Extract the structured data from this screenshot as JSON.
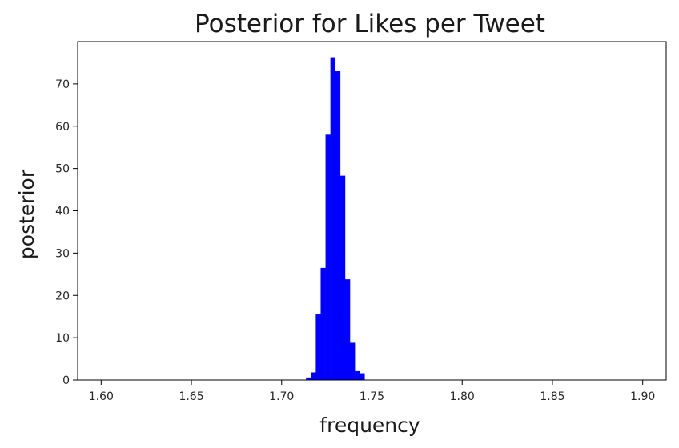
{
  "chart_data": {
    "type": "bar",
    "title": "Posterior for Likes per Tweet",
    "xlabel": "frequency",
    "ylabel": "posterior",
    "xlim": [
      1.587,
      1.913
    ],
    "ylim": [
      0,
      80
    ],
    "grid": false,
    "bar_color": "#0000ff",
    "xticks": [
      "1.60",
      "1.65",
      "1.70",
      "1.75",
      "1.80",
      "1.85",
      "1.90"
    ],
    "yticks": [
      "0",
      "10",
      "20",
      "30",
      "40",
      "50",
      "60",
      "70"
    ],
    "bins": [
      {
        "x0": 1.7135,
        "x1": 1.7162,
        "value": 0.6
      },
      {
        "x0": 1.7162,
        "x1": 1.7189,
        "value": 1.8
      },
      {
        "x0": 1.7189,
        "x1": 1.7216,
        "value": 15.5
      },
      {
        "x0": 1.7216,
        "x1": 1.7243,
        "value": 26.5
      },
      {
        "x0": 1.7243,
        "x1": 1.727,
        "value": 58.0
      },
      {
        "x0": 1.727,
        "x1": 1.7297,
        "value": 76.3
      },
      {
        "x0": 1.7297,
        "x1": 1.7324,
        "value": 73.0
      },
      {
        "x0": 1.7324,
        "x1": 1.7351,
        "value": 48.3
      },
      {
        "x0": 1.7351,
        "x1": 1.7378,
        "value": 23.8
      },
      {
        "x0": 1.7378,
        "x1": 1.7405,
        "value": 8.8
      },
      {
        "x0": 1.7405,
        "x1": 1.7432,
        "value": 2.1
      },
      {
        "x0": 1.7432,
        "x1": 1.7459,
        "value": 1.6
      }
    ]
  }
}
